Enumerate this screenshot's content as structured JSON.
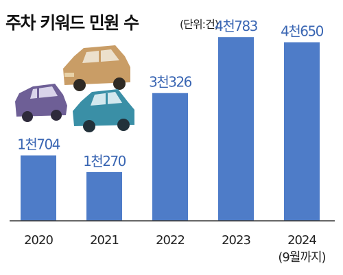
{
  "title": "주차 키워드 민원 수",
  "unit": "(단위:건)",
  "colors": {
    "bar": "#4e7cc8",
    "value_text": "#3a66b3",
    "axis": "#333333"
  },
  "chart_data": {
    "type": "bar",
    "title": "주차 키워드 민원 수",
    "unit": "(단위:건)",
    "categories": [
      "2020",
      "2021",
      "2022",
      "2023",
      "2024"
    ],
    "category_notes": [
      "",
      "",
      "",
      "",
      "(9월까지)"
    ],
    "values": [
      1704,
      1270,
      3326,
      4783,
      4650
    ],
    "value_labels": [
      "1천704",
      "1천270",
      "3천326",
      "4천783",
      "4천650"
    ],
    "ylim": [
      0,
      5000
    ],
    "grid": false,
    "legend": "none"
  }
}
